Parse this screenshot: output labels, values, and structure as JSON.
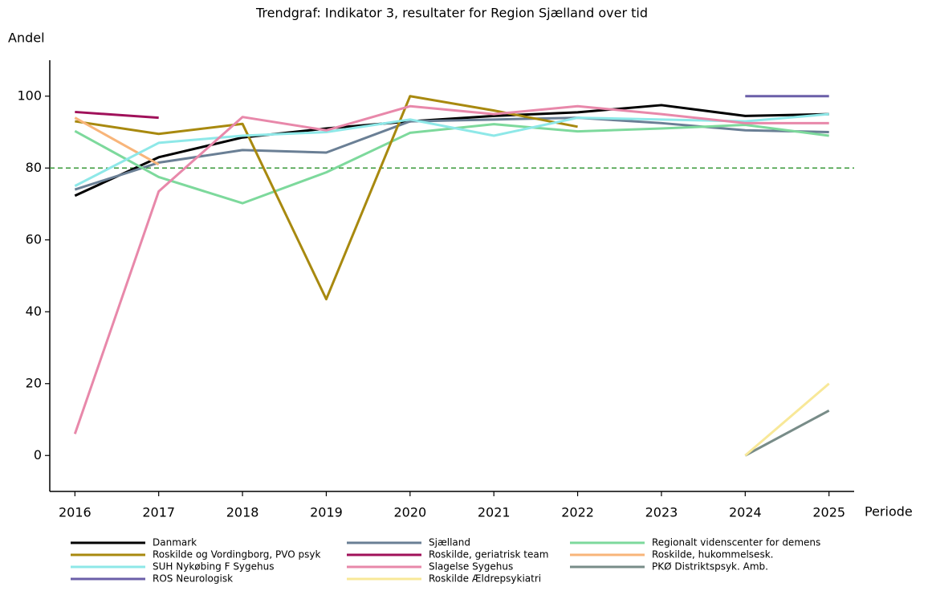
{
  "chart_data": {
    "type": "line",
    "title": "Trendgraf: Indikator 3, resultater for Region Sjælland over tid",
    "y_label": "Andel",
    "x_label": "Periode",
    "x": [
      2016,
      2017,
      2018,
      2019,
      2020,
      2021,
      2022,
      2023,
      2024,
      2025
    ],
    "xlim": [
      2015.7,
      2025.3
    ],
    "xticks": [
      2016,
      2017,
      2018,
      2019,
      2020,
      2021,
      2022,
      2023,
      2024,
      2025
    ],
    "ylim": [
      -10,
      110
    ],
    "yticks": [
      0,
      20,
      40,
      60,
      80,
      100
    ],
    "reference_line": {
      "value": 80,
      "color": "#3a9a3a"
    },
    "legend": "bottom",
    "series": [
      {
        "name": "Danmark",
        "color": "#000000",
        "values": [
          72.3,
          83,
          88.5,
          91,
          93,
          94.5,
          95.5,
          97.5,
          94.5,
          95
        ]
      },
      {
        "name": "Sjælland",
        "color": "#6a7f95",
        "values": [
          74,
          81.5,
          85,
          84.3,
          93,
          93.5,
          94,
          92.5,
          90.5,
          90
        ]
      },
      {
        "name": "Regionalt videnscenter for demens",
        "color": "#7dd99c",
        "values": [
          90.3,
          77.5,
          70.2,
          78.8,
          89.8,
          92.2,
          90.2,
          91,
          92,
          89
        ]
      },
      {
        "name": "Roskilde og Vordingborg, PVO psyk",
        "color": "#a8890f",
        "values": [
          93,
          89.5,
          92.3,
          43.5,
          100,
          96,
          91.5,
          null,
          null,
          null
        ]
      },
      {
        "name": "Roskilde, geriatrisk team",
        "color": "#a0115a",
        "values": [
          95.6,
          94,
          null,
          null,
          null,
          null,
          null,
          null,
          null,
          null
        ]
      },
      {
        "name": "Roskilde, hukommelsesk.",
        "color": "#f8b57a",
        "values": [
          94,
          81,
          null,
          null,
          null,
          null,
          null,
          null,
          null,
          null
        ]
      },
      {
        "name": "SUH Nykøbing F Sygehus",
        "color": "#8ee8e8",
        "values": [
          75,
          87,
          89,
          90,
          93.5,
          89,
          94,
          93.5,
          93,
          95
        ]
      },
      {
        "name": "Slagelse Sygehus",
        "color": "#e888aa",
        "values": [
          6,
          73.5,
          94.2,
          90.5,
          97.2,
          95,
          97.2,
          95,
          92.5,
          92.5
        ]
      },
      {
        "name": "PKØ Distriktspsyk. Amb.",
        "color": "#788c88",
        "values": [
          null,
          null,
          null,
          null,
          null,
          null,
          null,
          null,
          0,
          12.5
        ]
      },
      {
        "name": "ROS Neurologisk",
        "color": "#6b5fa8",
        "values": [
          null,
          null,
          null,
          null,
          null,
          null,
          null,
          null,
          100,
          100
        ]
      },
      {
        "name": "Roskilde Ældrepsykiatri",
        "color": "#f8e898",
        "values": [
          null,
          null,
          null,
          null,
          null,
          null,
          null,
          null,
          0,
          20
        ]
      }
    ]
  }
}
